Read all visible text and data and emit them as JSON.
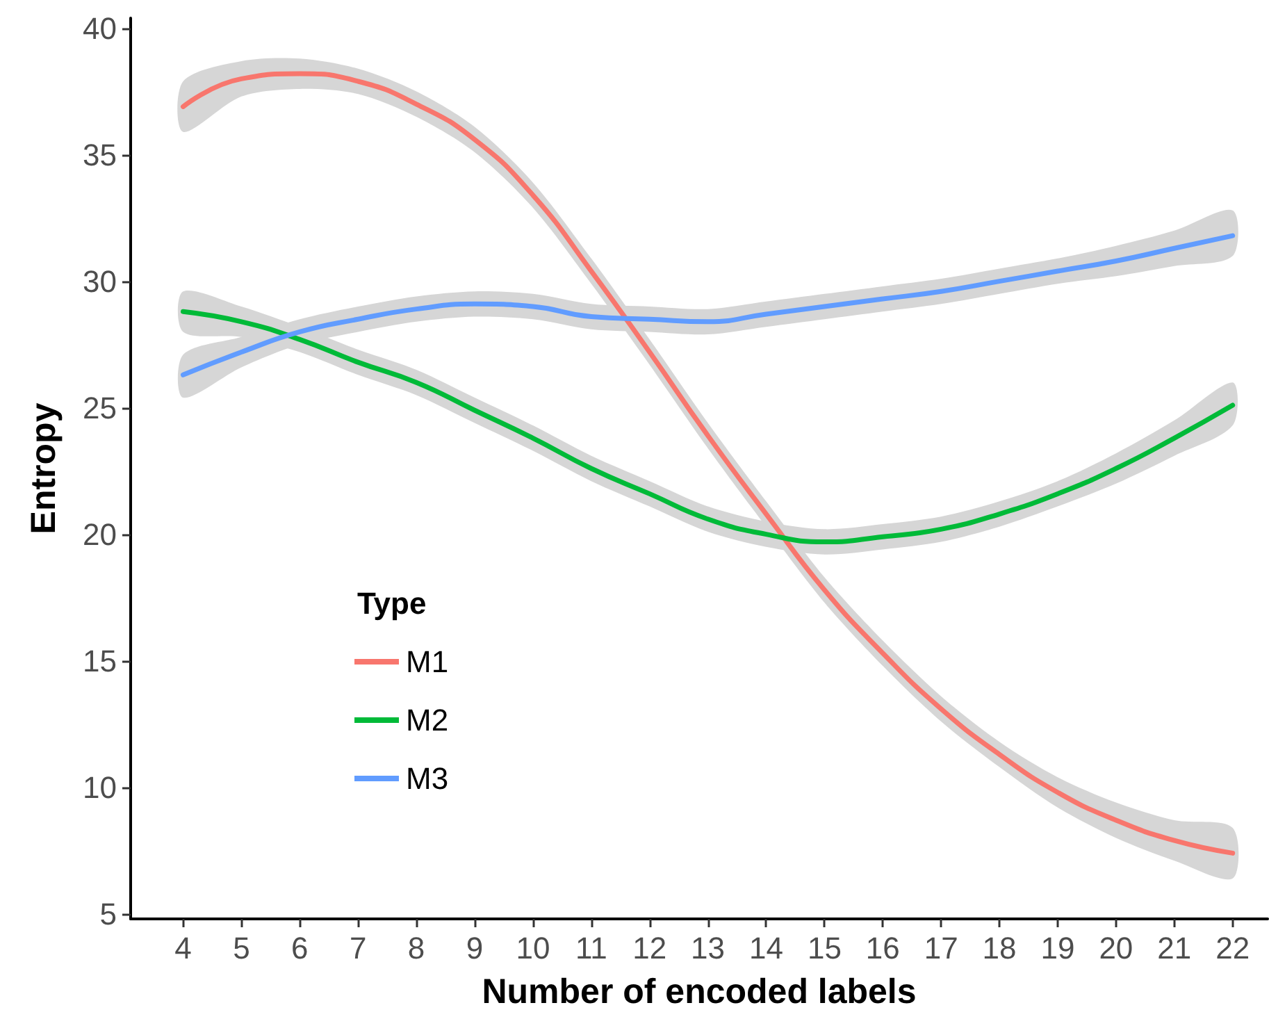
{
  "chart_data": {
    "type": "line",
    "xlabel": "Number of encoded labels",
    "ylabel": "Entropy",
    "legend_title": "Type",
    "legend": "left",
    "grid": false,
    "marker": "none",
    "line_style": "solid",
    "x": [
      4,
      5,
      6,
      7,
      8,
      9,
      10,
      11,
      12,
      13,
      14,
      15,
      16,
      17,
      18,
      19,
      20,
      21,
      22
    ],
    "xlim": [
      3.1,
      22.6
    ],
    "xticks": [
      4,
      5,
      6,
      7,
      8,
      9,
      10,
      11,
      12,
      13,
      14,
      15,
      16,
      17,
      18,
      19,
      20,
      21,
      22
    ],
    "ylim": [
      4.8,
      40.4
    ],
    "yticks": [
      5,
      10,
      15,
      20,
      25,
      30,
      35,
      40
    ],
    "series": [
      {
        "name": "M1",
        "color": "#f8766d",
        "values": [
          36.9,
          38.0,
          38.2,
          37.9,
          37.0,
          35.6,
          33.4,
          30.4,
          27.2,
          23.9,
          20.8,
          17.8,
          15.3,
          13.1,
          11.3,
          9.8,
          8.7,
          7.9,
          7.4
        ],
        "lower": [
          35.9,
          37.3,
          37.6,
          37.4,
          36.5,
          35.1,
          32.9,
          29.9,
          26.7,
          23.4,
          20.3,
          17.3,
          14.8,
          12.6,
          10.8,
          9.2,
          8.0,
          7.1,
          6.4
        ],
        "upper": [
          37.9,
          38.7,
          38.8,
          38.4,
          37.5,
          36.1,
          33.9,
          30.9,
          27.7,
          24.4,
          21.3,
          18.3,
          15.8,
          13.6,
          11.8,
          10.4,
          9.4,
          8.7,
          8.4
        ]
      },
      {
        "name": "M2",
        "color": "#00ba38",
        "values": [
          28.8,
          28.4,
          27.7,
          26.8,
          26.0,
          24.9,
          23.8,
          22.6,
          21.6,
          20.6,
          20.0,
          19.7,
          19.9,
          20.2,
          20.8,
          21.6,
          22.6,
          23.8,
          25.1
        ],
        "lower": [
          28.0,
          27.8,
          27.2,
          26.3,
          25.5,
          24.4,
          23.3,
          22.1,
          21.1,
          20.1,
          19.5,
          19.2,
          19.4,
          19.7,
          20.3,
          21.1,
          22.0,
          23.1,
          24.3
        ],
        "upper": [
          29.6,
          29.0,
          28.2,
          27.3,
          26.5,
          25.4,
          24.3,
          23.1,
          22.1,
          21.1,
          20.5,
          20.2,
          20.4,
          20.7,
          21.3,
          22.1,
          23.2,
          24.5,
          26.0
        ]
      },
      {
        "name": "M3",
        "color": "#619cff",
        "values": [
          26.3,
          27.2,
          28.0,
          28.5,
          28.9,
          29.1,
          29.0,
          28.6,
          28.5,
          28.4,
          28.7,
          29.0,
          29.3,
          29.6,
          30.0,
          30.4,
          30.8,
          31.3,
          31.8
        ],
        "lower": [
          25.4,
          26.6,
          27.5,
          28.0,
          28.4,
          28.6,
          28.5,
          28.1,
          28.0,
          27.9,
          28.2,
          28.5,
          28.8,
          29.1,
          29.5,
          29.9,
          30.2,
          30.6,
          31.0
        ],
        "upper": [
          27.1,
          27.8,
          28.5,
          29.0,
          29.4,
          29.6,
          29.5,
          29.1,
          29.0,
          28.9,
          29.2,
          29.5,
          29.8,
          30.1,
          30.5,
          30.9,
          31.4,
          32.0,
          32.8
        ]
      }
    ]
  }
}
